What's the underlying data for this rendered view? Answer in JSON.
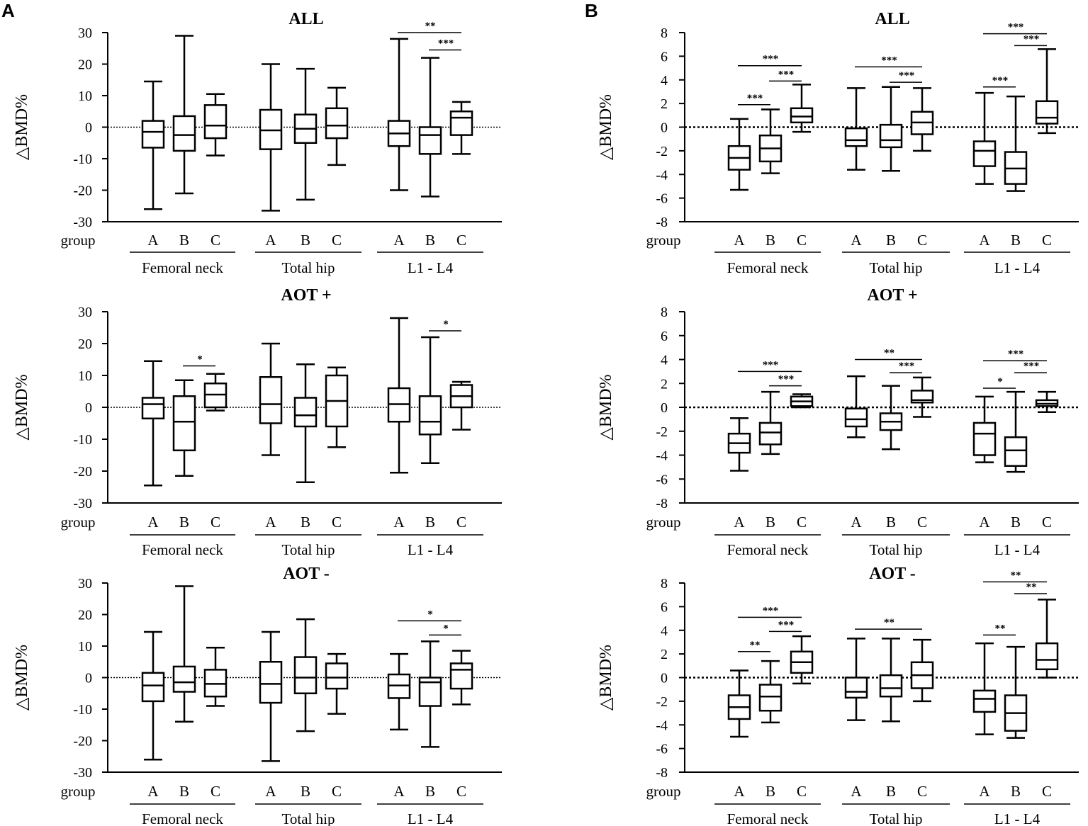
{
  "panels": [
    {
      "letter": "A"
    },
    {
      "letter": "B"
    }
  ],
  "labels": {
    "ylabel": "△BMD%",
    "group": "group",
    "groups": [
      "A",
      "B",
      "C"
    ],
    "sites": [
      "Femoral neck",
      "Total hip",
      "L1 - L4"
    ]
  },
  "chart_data": [
    {
      "type": "boxplot",
      "panel": "A",
      "title": "ALL",
      "ylim": [
        -30,
        30
      ],
      "yticks": [
        -30,
        -20,
        -10,
        0,
        10,
        20,
        30
      ],
      "ylabel": "△BMD%",
      "reference_line": 0,
      "boxes": [
        {
          "site": "Femoral neck",
          "group": "A",
          "min": -26,
          "q1": -6.5,
          "median": -1.5,
          "q3": 2,
          "max": 14.5
        },
        {
          "site": "Femoral neck",
          "group": "B",
          "min": -21,
          "q1": -7.5,
          "median": -2.5,
          "q3": 3.5,
          "max": 29
        },
        {
          "site": "Femoral neck",
          "group": "C",
          "min": -9,
          "q1": -3.5,
          "median": 0.5,
          "q3": 7,
          "max": 10.5
        },
        {
          "site": "Total hip",
          "group": "A",
          "min": -26.5,
          "q1": -7,
          "median": -1,
          "q3": 5.5,
          "max": 20
        },
        {
          "site": "Total hip",
          "group": "B",
          "min": -23,
          "q1": -5,
          "median": -0.5,
          "q3": 4,
          "max": 18.5
        },
        {
          "site": "Total hip",
          "group": "C",
          "min": -12,
          "q1": -3.5,
          "median": 0.5,
          "q3": 6,
          "max": 12.5
        },
        {
          "site": "L1 - L4",
          "group": "A",
          "min": -20,
          "q1": -6,
          "median": -2,
          "q3": 2,
          "max": 28
        },
        {
          "site": "L1 - L4",
          "group": "B",
          "min": -22,
          "q1": -8.5,
          "median": -2.5,
          "q3": 0,
          "max": 22
        },
        {
          "site": "L1 - L4",
          "group": "C",
          "min": -8.5,
          "q1": -2.5,
          "median": 3,
          "q3": 5,
          "max": 8
        }
      ],
      "significance": [
        {
          "site": "L1 - L4",
          "from": "A",
          "to": "C",
          "label": "**",
          "y": 30
        },
        {
          "site": "L1 - L4",
          "from": "B",
          "to": "C",
          "label": "***",
          "y": 24.5
        }
      ]
    },
    {
      "type": "boxplot",
      "panel": "A",
      "title": "AOT +",
      "ylim": [
        -30,
        30
      ],
      "yticks": [
        -30,
        -20,
        -10,
        0,
        10,
        20,
        30
      ],
      "ylabel": "△BMD%",
      "reference_line": 0,
      "boxes": [
        {
          "site": "Femoral neck",
          "group": "A",
          "min": -24.5,
          "q1": -3.5,
          "median": 1,
          "q3": 3,
          "max": 14.5
        },
        {
          "site": "Femoral neck",
          "group": "B",
          "min": -21.5,
          "q1": -13.5,
          "median": -4.5,
          "q3": 3.5,
          "max": 8.5
        },
        {
          "site": "Femoral neck",
          "group": "C",
          "min": -1,
          "q1": 0,
          "median": 4,
          "q3": 7.5,
          "max": 10.5
        },
        {
          "site": "Total hip",
          "group": "A",
          "min": -15,
          "q1": -5,
          "median": 1,
          "q3": 9.5,
          "max": 20
        },
        {
          "site": "Total hip",
          "group": "B",
          "min": -23.5,
          "q1": -6,
          "median": -2.5,
          "q3": 3,
          "max": 13.5
        },
        {
          "site": "Total hip",
          "group": "C",
          "min": -12.5,
          "q1": -6,
          "median": 2,
          "q3": 10,
          "max": 12.5
        },
        {
          "site": "L1 - L4",
          "group": "A",
          "min": -20.5,
          "q1": -4.5,
          "median": 1,
          "q3": 6,
          "max": 28
        },
        {
          "site": "L1 - L4",
          "group": "B",
          "min": -17.5,
          "q1": -8.5,
          "median": -4.5,
          "q3": 3.5,
          "max": 22
        },
        {
          "site": "L1 - L4",
          "group": "C",
          "min": -7,
          "q1": 0,
          "median": 3.5,
          "q3": 7,
          "max": 8
        }
      ],
      "significance": [
        {
          "site": "Femoral neck",
          "from": "B",
          "to": "C",
          "label": "*",
          "y": 13
        },
        {
          "site": "L1 - L4",
          "from": "B",
          "to": "C",
          "label": "*",
          "y": 24
        }
      ]
    },
    {
      "type": "boxplot",
      "panel": "A",
      "title": "AOT -",
      "ylim": [
        -30,
        30
      ],
      "yticks": [
        -30,
        -20,
        -10,
        0,
        10,
        20,
        30
      ],
      "ylabel": "△BMD%",
      "reference_line": 0,
      "boxes": [
        {
          "site": "Femoral neck",
          "group": "A",
          "min": -26,
          "q1": -7.5,
          "median": -2.5,
          "q3": 1.5,
          "max": 14.5
        },
        {
          "site": "Femoral neck",
          "group": "B",
          "min": -14,
          "q1": -4.5,
          "median": -1.5,
          "q3": 3.5,
          "max": 29
        },
        {
          "site": "Femoral neck",
          "group": "C",
          "min": -9,
          "q1": -6,
          "median": -2,
          "q3": 2.5,
          "max": 9.5
        },
        {
          "site": "Total hip",
          "group": "A",
          "min": -26.5,
          "q1": -8,
          "median": -2,
          "q3": 5,
          "max": 14.5
        },
        {
          "site": "Total hip",
          "group": "B",
          "min": -17,
          "q1": -5,
          "median": 0,
          "q3": 6.5,
          "max": 18.5
        },
        {
          "site": "Total hip",
          "group": "C",
          "min": -11.5,
          "q1": -3.5,
          "median": 0,
          "q3": 4.5,
          "max": 7.5
        },
        {
          "site": "L1 - L4",
          "group": "A",
          "min": -16.5,
          "q1": -6.5,
          "median": -2.5,
          "q3": 1,
          "max": 7.5
        },
        {
          "site": "L1 - L4",
          "group": "B",
          "min": -22,
          "q1": -9,
          "median": -1.5,
          "q3": 0,
          "max": 11.5
        },
        {
          "site": "L1 - L4",
          "group": "C",
          "min": -8.5,
          "q1": -3.5,
          "median": 2.5,
          "q3": 4.5,
          "max": 8.5
        }
      ],
      "significance": [
        {
          "site": "L1 - L4",
          "from": "A",
          "to": "C",
          "label": "*",
          "y": 18
        },
        {
          "site": "L1 - L4",
          "from": "B",
          "to": "C",
          "label": "*",
          "y": 13.5
        }
      ]
    },
    {
      "type": "boxplot",
      "panel": "B",
      "title": "ALL",
      "ylim": [
        -8,
        8
      ],
      "yticks": [
        -8,
        -6,
        -4,
        -2,
        0,
        2,
        4,
        6,
        8
      ],
      "ylabel": "△BMD%",
      "reference_line": 0,
      "boxes": [
        {
          "site": "Femoral neck",
          "group": "A",
          "min": -5.3,
          "q1": -3.6,
          "median": -2.6,
          "q3": -1.6,
          "max": 0.7
        },
        {
          "site": "Femoral neck",
          "group": "B",
          "min": -3.9,
          "q1": -2.9,
          "median": -1.8,
          "q3": -0.7,
          "max": 1.5
        },
        {
          "site": "Femoral neck",
          "group": "C",
          "min": -0.4,
          "q1": 0.4,
          "median": 0.9,
          "q3": 1.6,
          "max": 3.6
        },
        {
          "site": "Total hip",
          "group": "A",
          "min": -3.6,
          "q1": -1.6,
          "median": -1.1,
          "q3": -0.1,
          "max": 3.3
        },
        {
          "site": "Total hip",
          "group": "B",
          "min": -3.7,
          "q1": -1.7,
          "median": -1.1,
          "q3": 0.2,
          "max": 3.4
        },
        {
          "site": "Total hip",
          "group": "C",
          "min": -2.0,
          "q1": -0.6,
          "median": 0.4,
          "q3": 1.3,
          "max": 3.3
        },
        {
          "site": "L1 - L4",
          "group": "A",
          "min": -4.8,
          "q1": -3.3,
          "median": -2.0,
          "q3": -1.2,
          "max": 2.9
        },
        {
          "site": "L1 - L4",
          "group": "B",
          "min": -5.4,
          "q1": -4.8,
          "median": -3.5,
          "q3": -2.1,
          "max": 2.6
        },
        {
          "site": "L1 - L4",
          "group": "C",
          "min": -0.5,
          "q1": 0.3,
          "median": 0.8,
          "q3": 2.2,
          "max": 6.6
        }
      ],
      "significance": [
        {
          "site": "Femoral neck",
          "from": "A",
          "to": "B",
          "label": "***",
          "y": 1.9
        },
        {
          "site": "Femoral neck",
          "from": "A",
          "to": "C",
          "label": "***",
          "y": 5.2
        },
        {
          "site": "Femoral neck",
          "from": "B",
          "to": "C",
          "label": "***",
          "y": 3.9
        },
        {
          "site": "Total hip",
          "from": "A",
          "to": "C",
          "label": "***",
          "y": 5.1
        },
        {
          "site": "Total hip",
          "from": "B",
          "to": "C",
          "label": "***",
          "y": 3.8
        },
        {
          "site": "L1 - L4",
          "from": "A",
          "to": "B",
          "label": "***",
          "y": 3.4
        },
        {
          "site": "L1 - L4",
          "from": "A",
          "to": "C",
          "label": "***",
          "y": 7.9
        },
        {
          "site": "L1 - L4",
          "from": "B",
          "to": "C",
          "label": "***",
          "y": 6.9
        }
      ]
    },
    {
      "type": "boxplot",
      "panel": "B",
      "title": "AOT +",
      "ylim": [
        -8,
        8
      ],
      "yticks": [
        -8,
        -6,
        -4,
        -2,
        0,
        2,
        4,
        6,
        8
      ],
      "ylabel": "△BMD%",
      "reference_line": 0,
      "boxes": [
        {
          "site": "Femoral neck",
          "group": "A",
          "min": -5.3,
          "q1": -3.8,
          "median": -3.0,
          "q3": -2.2,
          "max": -0.9
        },
        {
          "site": "Femoral neck",
          "group": "B",
          "min": -3.9,
          "q1": -3.1,
          "median": -2.1,
          "q3": -1.3,
          "max": 1.3
        },
        {
          "site": "Femoral neck",
          "group": "C",
          "min": 0,
          "q1": 0.1,
          "median": 0.5,
          "q3": 0.9,
          "max": 1.1
        },
        {
          "site": "Total hip",
          "group": "A",
          "min": -2.5,
          "q1": -1.6,
          "median": -1.0,
          "q3": -0.1,
          "max": 2.6
        },
        {
          "site": "Total hip",
          "group": "B",
          "min": -3.5,
          "q1": -1.9,
          "median": -1.2,
          "q3": -0.5,
          "max": 1.8
        },
        {
          "site": "Total hip",
          "group": "C",
          "min": -0.8,
          "q1": 0.4,
          "median": 0.6,
          "q3": 1.4,
          "max": 2.5
        },
        {
          "site": "L1 - L4",
          "group": "A",
          "min": -4.6,
          "q1": -4.0,
          "median": -2.2,
          "q3": -1.3,
          "max": 0.9
        },
        {
          "site": "L1 - L4",
          "group": "B",
          "min": -5.4,
          "q1": -4.9,
          "median": -3.6,
          "q3": -2.5,
          "max": 1.3
        },
        {
          "site": "L1 - L4",
          "group": "C",
          "min": -0.4,
          "q1": 0.1,
          "median": 0.3,
          "q3": 0.6,
          "max": 1.3
        }
      ],
      "significance": [
        {
          "site": "Femoral neck",
          "from": "A",
          "to": "C",
          "label": "***",
          "y": 3.0
        },
        {
          "site": "Femoral neck",
          "from": "B",
          "to": "C",
          "label": "***",
          "y": 1.8
        },
        {
          "site": "Total hip",
          "from": "A",
          "to": "C",
          "label": "**",
          "y": 4.0
        },
        {
          "site": "Total hip",
          "from": "B",
          "to": "C",
          "label": "***",
          "y": 2.9
        },
        {
          "site": "L1 - L4",
          "from": "A",
          "to": "B",
          "label": "*",
          "y": 1.6
        },
        {
          "site": "L1 - L4",
          "from": "A",
          "to": "C",
          "label": "***",
          "y": 3.9
        },
        {
          "site": "L1 - L4",
          "from": "B",
          "to": "C",
          "label": "***",
          "y": 2.9
        }
      ]
    },
    {
      "type": "boxplot",
      "panel": "B",
      "title": "AOT -",
      "ylim": [
        -8,
        8
      ],
      "yticks": [
        -8,
        -6,
        -4,
        -2,
        0,
        2,
        4,
        6,
        8
      ],
      "ylabel": "△BMD%",
      "reference_line": 0,
      "boxes": [
        {
          "site": "Femoral neck",
          "group": "A",
          "min": -5.0,
          "q1": -3.5,
          "median": -2.5,
          "q3": -1.5,
          "max": 0.6
        },
        {
          "site": "Femoral neck",
          "group": "B",
          "min": -3.8,
          "q1": -2.8,
          "median": -1.6,
          "q3": -0.6,
          "max": 1.4
        },
        {
          "site": "Femoral neck",
          "group": "C",
          "min": -0.5,
          "q1": 0.4,
          "median": 1.3,
          "q3": 2.2,
          "max": 3.5
        },
        {
          "site": "Total hip",
          "group": "A",
          "min": -3.6,
          "q1": -1.7,
          "median": -1.2,
          "q3": 0,
          "max": 3.3
        },
        {
          "site": "Total hip",
          "group": "B",
          "min": -3.7,
          "q1": -1.6,
          "median": -0.9,
          "q3": 0.2,
          "max": 3.3
        },
        {
          "site": "Total hip",
          "group": "C",
          "min": -2.0,
          "q1": -0.9,
          "median": 0.2,
          "q3": 1.3,
          "max": 3.2
        },
        {
          "site": "L1 - L4",
          "group": "A",
          "min": -4.8,
          "q1": -2.9,
          "median": -1.8,
          "q3": -1.1,
          "max": 2.9
        },
        {
          "site": "L1 - L4",
          "group": "B",
          "min": -5.1,
          "q1": -4.5,
          "median": -3.0,
          "q3": -1.5,
          "max": 2.6
        },
        {
          "site": "L1 - L4",
          "group": "C",
          "min": 0,
          "q1": 0.7,
          "median": 1.5,
          "q3": 2.9,
          "max": 6.6
        }
      ],
      "significance": [
        {
          "site": "Femoral neck",
          "from": "A",
          "to": "B",
          "label": "**",
          "y": 2.2
        },
        {
          "site": "Femoral neck",
          "from": "A",
          "to": "C",
          "label": "***",
          "y": 5.1
        },
        {
          "site": "Femoral neck",
          "from": "B",
          "to": "C",
          "label": "***",
          "y": 3.9
        },
        {
          "site": "Total hip",
          "from": "A",
          "to": "C",
          "label": "**",
          "y": 4.1
        },
        {
          "site": "L1 - L4",
          "from": "A",
          "to": "B",
          "label": "**",
          "y": 3.6
        },
        {
          "site": "L1 - L4",
          "from": "A",
          "to": "C",
          "label": "**",
          "y": 8.1
        },
        {
          "site": "L1 - L4",
          "from": "B",
          "to": "C",
          "label": "**",
          "y": 7.1
        }
      ]
    }
  ]
}
